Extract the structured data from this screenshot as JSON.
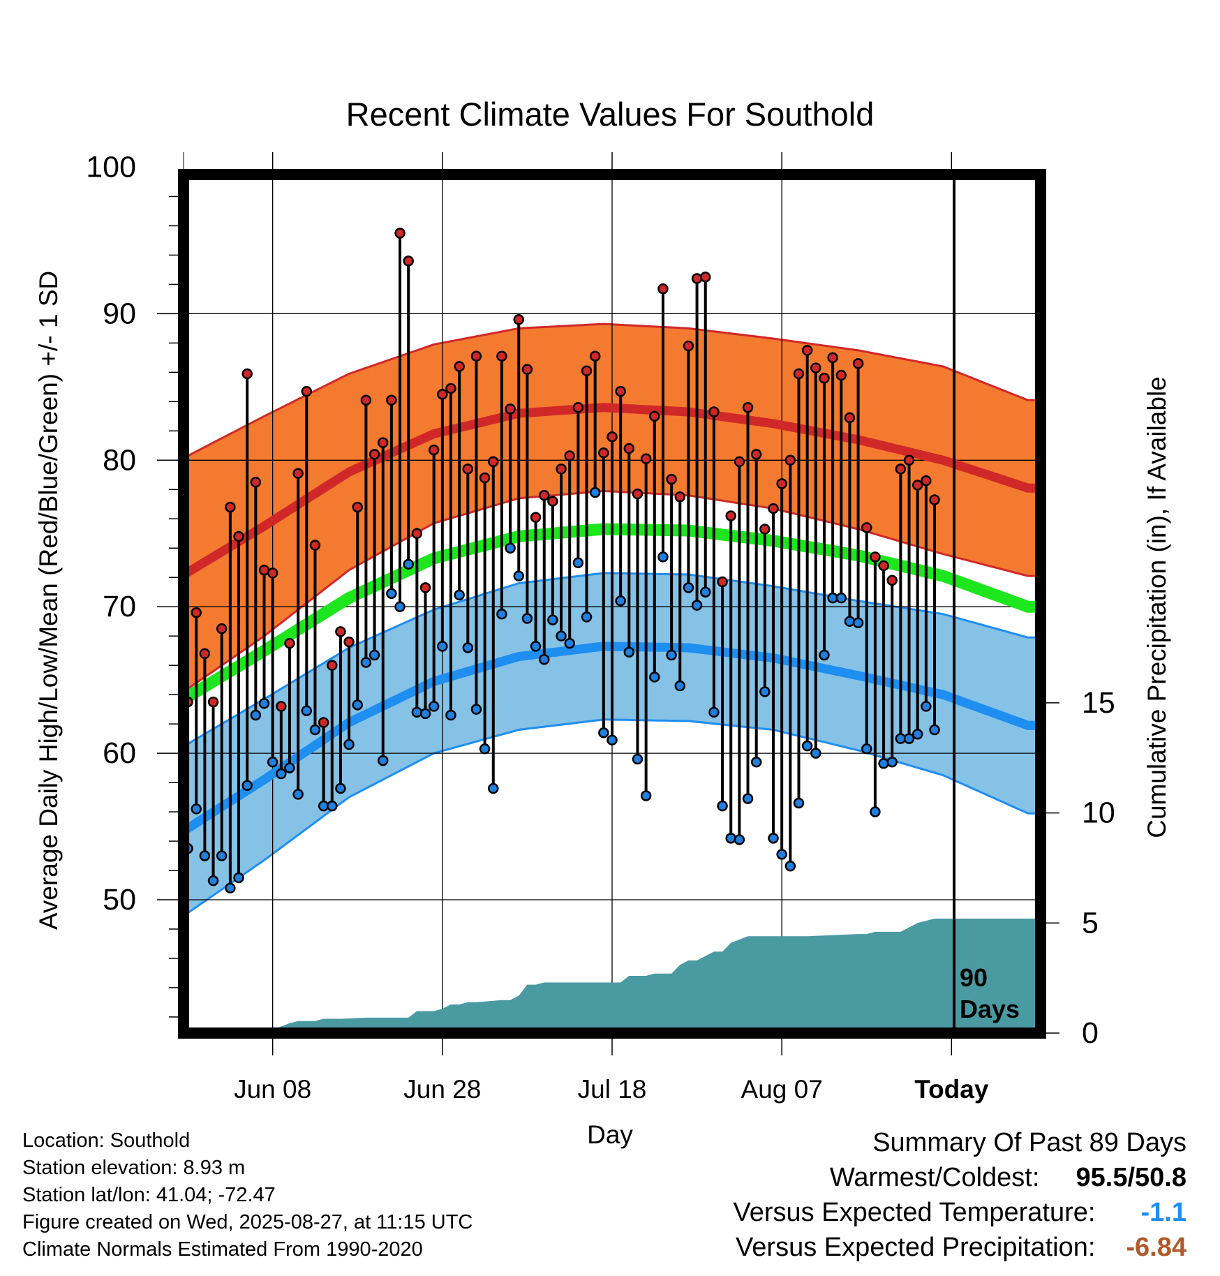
{
  "colors": {
    "high_band": "#f47a30",
    "high_mean": "#d02828",
    "high_edge": "#d02828",
    "low_band": "#86c1e6",
    "low_mean": "#1e8ef0",
    "low_edge": "#1e8ef0",
    "mean_line": "#1ee61e",
    "precip": "#4a9aa2",
    "high_dot": "#d02828",
    "low_dot": "#2080e0",
    "versus_temp": "#1e8ef0",
    "versus_precip": "#b05a2a"
  },
  "chart_data": {
    "type": "line",
    "title": "Recent Climate Values For Southold",
    "xlabel": "Day",
    "ylabel": "Average Daily High/Low/Mean (Red/Blue/Green) +/- 1 SD",
    "y2label": "Cumulative Precipitation (in), If Available",
    "ylim": [
      40.9,
      99.5
    ],
    "y2lim": [
      0,
      39
    ],
    "yticks": [
      "100",
      "90",
      "80",
      "70",
      "60",
      "50"
    ],
    "y2ticks": [
      "0",
      "5",
      "10",
      "15"
    ],
    "x_tick_labels": [
      "Jun 08",
      "Jun 28",
      "Jul 18",
      "Aug 07",
      "Today"
    ],
    "x_tick_days": [
      11,
      31,
      51,
      71,
      91
    ],
    "x_range_days": [
      0.5,
      101.5
    ],
    "grid": true,
    "today_line_label": "90 Days",
    "normals": {
      "days": [
        0,
        10,
        20,
        30,
        40,
        50,
        60,
        70,
        80,
        90,
        100
      ],
      "high_mean": [
        72,
        75.5,
        79.2,
        81.8,
        83.2,
        83.6,
        83.3,
        82.5,
        81.4,
        80,
        78.1
      ],
      "high_sd": [
        8,
        7.5,
        6.7,
        6.1,
        5.8,
        5.7,
        5.7,
        5.8,
        6.1,
        6.4,
        6
      ],
      "low_mean": [
        54.5,
        58.2,
        62.1,
        64.9,
        66.6,
        67.3,
        67.2,
        66.5,
        65.3,
        64,
        61.9
      ],
      "low_sd": [
        5.8,
        5.5,
        5.1,
        4.9,
        5,
        5,
        5,
        4.9,
        5.1,
        5.5,
        6
      ],
      "mean": [
        63.5,
        67,
        70.6,
        73.3,
        74.8,
        75.3,
        75.2,
        74.5,
        73.5,
        72.1,
        70
      ]
    },
    "daily_highs": [
      63.5,
      69.6,
      66.8,
      63.5,
      68.5,
      76.8,
      74.8,
      85.9,
      78.5,
      72.5,
      72.3,
      63.2,
      67.5,
      79.1,
      84.7,
      74.2,
      62.1,
      66,
      68.3,
      67.6,
      76.8,
      84.1,
      80.4,
      81.2,
      84.1,
      95.5,
      93.6,
      75,
      71.3,
      80.7,
      84.5,
      84.9,
      86.4,
      79.4,
      87.1,
      78.8,
      79.9,
      87.1,
      83.5,
      89.6,
      86.2,
      76.1,
      77.6,
      77.2,
      79.4,
      80.3,
      83.6,
      86.1,
      87.1,
      80.5,
      81.6,
      84.7,
      80.8,
      77.7,
      80.1,
      83,
      91.7,
      78.7,
      77.5,
      87.8,
      92.4,
      92.5,
      83.3,
      71.7,
      76.2,
      79.9,
      83.6,
      80.4,
      75.3,
      76.7,
      78.4,
      80,
      85.9,
      87.5,
      86.3,
      85.6,
      87,
      85.8,
      82.9,
      86.6,
      75.4,
      73.4,
      72.8,
      71.8,
      79.4,
      80,
      78.3,
      78.6,
      77.3
    ],
    "daily_lows": [
      53.5,
      56.2,
      53,
      51.3,
      53,
      50.8,
      51.5,
      57.8,
      62.6,
      63.4,
      59.4,
      58.6,
      59,
      57.2,
      62.9,
      61.6,
      56.4,
      56.4,
      57.6,
      60.6,
      63.3,
      66.2,
      66.7,
      59.5,
      70.9,
      70,
      72.9,
      62.8,
      62.7,
      63.2,
      67.3,
      62.6,
      70.8,
      67.2,
      63,
      60.3,
      57.6,
      69.5,
      74,
      72.1,
      69.2,
      67.3,
      66.4,
      69.1,
      68,
      67.5,
      73,
      69.3,
      77.8,
      61.4,
      60.9,
      70.4,
      66.9,
      59.6,
      57.1,
      65.2,
      73.4,
      66.7,
      64.6,
      71.3,
      70.1,
      71,
      62.8,
      56.4,
      54.2,
      54.1,
      56.9,
      59.4,
      64.2,
      54.2,
      53.1,
      52.3,
      56.6,
      60.5,
      60,
      66.7,
      70.6,
      70.6,
      69,
      68.9,
      60.3,
      56,
      59.3,
      59.4,
      61,
      61,
      61.3,
      63.2,
      61.6
    ],
    "cumulative_precip": {
      "days": [
        1,
        8,
        9,
        10,
        11,
        12,
        13,
        14,
        16,
        17,
        19,
        22,
        27,
        28,
        30,
        31,
        32,
        33,
        34,
        35,
        38,
        39,
        40,
        41,
        42,
        43,
        47,
        50,
        51,
        52,
        53,
        54,
        55,
        56,
        57,
        58,
        59,
        60,
        61,
        62,
        63,
        64,
        65,
        67,
        70,
        74,
        80,
        81,
        82,
        83,
        84,
        85,
        87,
        89,
        93,
        101.5
      ],
      "values": [
        0.02,
        0.02,
        0.1,
        0.15,
        0.2,
        0.3,
        0.45,
        0.55,
        0.55,
        0.65,
        0.65,
        0.7,
        0.7,
        1.0,
        1.0,
        1.1,
        1.3,
        1.3,
        1.4,
        1.4,
        1.5,
        1.5,
        1.7,
        2.2,
        2.2,
        2.3,
        2.3,
        2.3,
        2.3,
        2.3,
        2.6,
        2.6,
        2.6,
        2.7,
        2.7,
        2.7,
        3.1,
        3.3,
        3.3,
        3.5,
        3.7,
        3.7,
        4.1,
        4.4,
        4.4,
        4.4,
        4.5,
        4.5,
        4.6,
        4.6,
        4.6,
        4.6,
        5.0,
        5.2,
        5.2,
        5.2
      ]
    }
  },
  "footer": {
    "location": "Location: Southold",
    "elevation": "Station elevation: 8.93 m",
    "latlon": "Station lat/lon: 41.04; -72.47",
    "created": "Figure created on Wed, 2025-08-27, at 11:15 UTC",
    "normals": "Climate Normals Estimated From 1990-2020"
  },
  "summary": {
    "title": "Summary Of Past 89 Days",
    "warm_cold_label": "Warmest/Coldest:",
    "warm_cold_value": "95.5/50.8",
    "versus_temp_label": "Versus Expected Temperature:",
    "versus_temp_value": "-1.1",
    "versus_precip_label": "Versus Expected Precipitation:",
    "versus_precip_value": "-6.84"
  }
}
